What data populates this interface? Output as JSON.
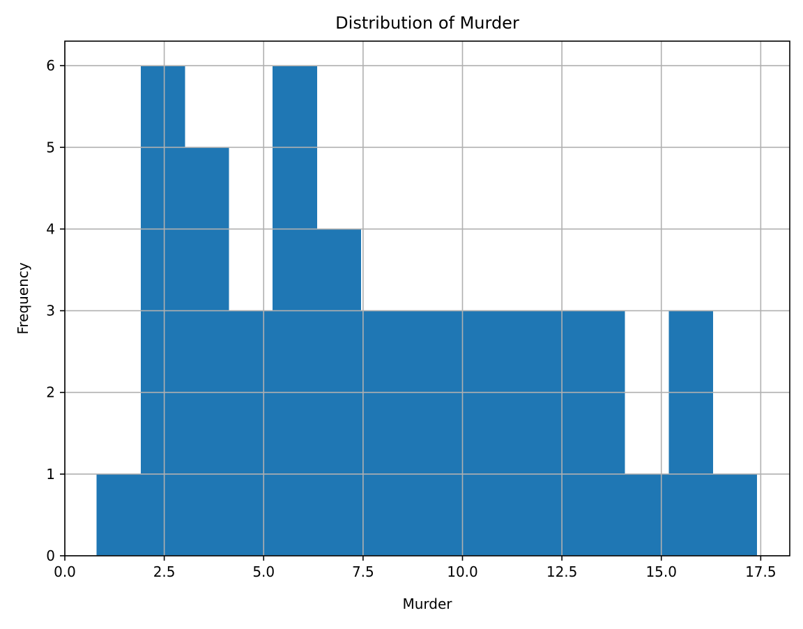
{
  "chart_data": {
    "type": "bar",
    "title": "Distribution of Murder",
    "xlabel": "Murder",
    "ylabel": "Frequency",
    "bins": [
      {
        "x0": 0.8,
        "x1": 1.9067,
        "count": 1
      },
      {
        "x0": 1.9067,
        "x1": 3.0133,
        "count": 6
      },
      {
        "x0": 3.0133,
        "x1": 4.12,
        "count": 5
      },
      {
        "x0": 4.12,
        "x1": 5.2267,
        "count": 3
      },
      {
        "x0": 5.2267,
        "x1": 6.3333,
        "count": 6
      },
      {
        "x0": 6.3333,
        "x1": 7.44,
        "count": 4
      },
      {
        "x0": 7.44,
        "x1": 8.5467,
        "count": 3
      },
      {
        "x0": 8.5467,
        "x1": 9.6533,
        "count": 3
      },
      {
        "x0": 9.6533,
        "x1": 10.76,
        "count": 3
      },
      {
        "x0": 10.76,
        "x1": 11.8667,
        "count": 3
      },
      {
        "x0": 11.8667,
        "x1": 12.9733,
        "count": 3
      },
      {
        "x0": 12.9733,
        "x1": 14.08,
        "count": 3
      },
      {
        "x0": 14.08,
        "x1": 15.1867,
        "count": 1
      },
      {
        "x0": 15.1867,
        "x1": 16.2933,
        "count": 3
      },
      {
        "x0": 16.2933,
        "x1": 17.4,
        "count": 1
      }
    ],
    "xlim": [
      0.0,
      18.23
    ],
    "ylim": [
      0,
      6.3
    ],
    "xticks": [
      0.0,
      2.5,
      5.0,
      7.5,
      10.0,
      12.5,
      15.0,
      17.5
    ],
    "xtick_labels": [
      "0.0",
      "2.5",
      "5.0",
      "7.5",
      "10.0",
      "12.5",
      "15.0",
      "17.5"
    ],
    "yticks": [
      0,
      1,
      2,
      3,
      4,
      5,
      6
    ],
    "ytick_labels": [
      "0",
      "1",
      "2",
      "3",
      "4",
      "5",
      "6"
    ],
    "grid": true,
    "bar_color": "#1f77b4",
    "grid_color": "#b0b0b0"
  }
}
